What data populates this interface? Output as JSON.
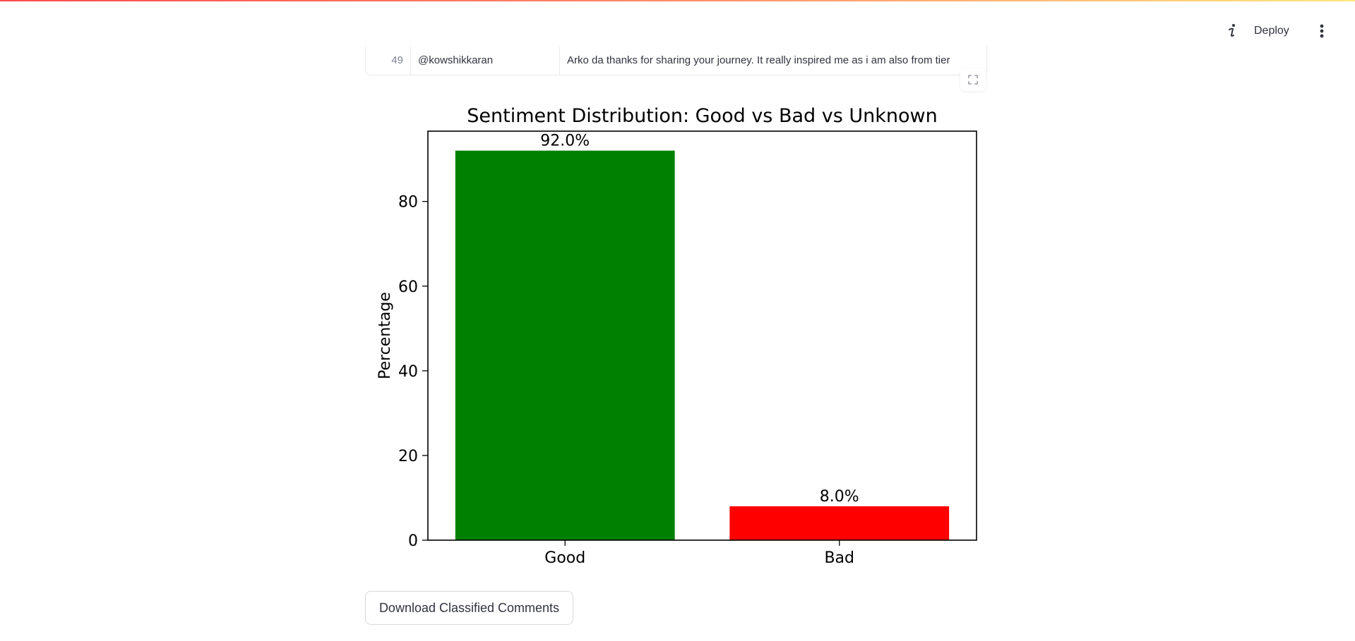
{
  "header": {
    "info_icon": "info-icon",
    "deploy_label": "Deploy",
    "menu_icon": "vertical-dots-icon"
  },
  "table": {
    "visible_row": {
      "index": "49",
      "user": "@kowshikkaran",
      "comment": "Arko da thanks for sharing your journey. It really inspired me as i am also from tier"
    },
    "fullscreen_icon": "fullscreen-icon"
  },
  "chart_data": {
    "type": "bar",
    "title": "Sentiment Distribution: Good vs Bad vs Unknown",
    "categories": [
      "Good",
      "Bad"
    ],
    "values": [
      92.0,
      8.0
    ],
    "value_labels": [
      "92.0%",
      "8.0%"
    ],
    "colors": [
      "#008000",
      "#ff0000"
    ],
    "xlabel": "",
    "ylabel": "Percentage",
    "ylim": [
      0,
      96.6
    ],
    "yticks": [
      0,
      20,
      40,
      60,
      80
    ],
    "ytick_labels": [
      "0",
      "20",
      "40",
      "60",
      "80"
    ],
    "grid": false
  },
  "actions": {
    "download_label": "Download Classified Comments"
  }
}
